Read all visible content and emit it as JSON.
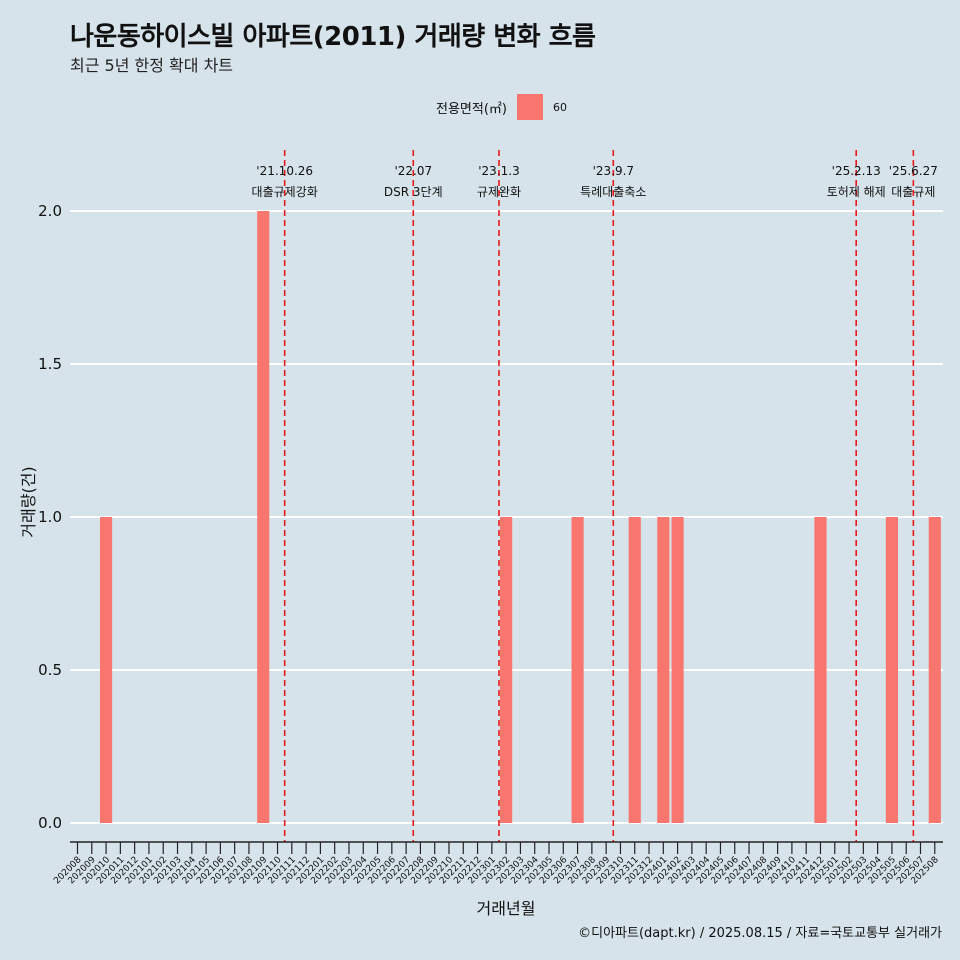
{
  "header": {
    "title": "나운동하이스빌 아파트(2011) 거래량 변화 흐름",
    "subtitle": "최근 5년 한정 확대 차트"
  },
  "legend": {
    "title": "전용면적(㎡)",
    "label": "60"
  },
  "caption": "©디아파트(dapt.kr) / 2025.08.15 / 자료=국토교통부 실거래가",
  "colors": {
    "background": "#d6e3ea",
    "bar": "#f8766d",
    "gridline": "#ffffff",
    "event_line": "#e8191b"
  },
  "chart_data": {
    "type": "bar",
    "xlabel": "거래년월",
    "ylabel": "거래량(건)",
    "ylim": [
      0,
      2
    ],
    "yticks": [
      "0.0",
      "0.5",
      "1.0",
      "1.5",
      "2.0"
    ],
    "grid": "horizontal",
    "legend_position": "top",
    "categories": [
      "202008",
      "202009",
      "202010",
      "202011",
      "202012",
      "202101",
      "202102",
      "202103",
      "202104",
      "202105",
      "202106",
      "202107",
      "202108",
      "202109",
      "202110",
      "202111",
      "202112",
      "202201",
      "202202",
      "202203",
      "202204",
      "202205",
      "202206",
      "202207",
      "202208",
      "202209",
      "202210",
      "202211",
      "202212",
      "202301",
      "202302",
      "202303",
      "202304",
      "202305",
      "202306",
      "202307",
      "202308",
      "202309",
      "202310",
      "202311",
      "202312",
      "202401",
      "202402",
      "202403",
      "202404",
      "202405",
      "202406",
      "202407",
      "202408",
      "202409",
      "202410",
      "202411",
      "202412",
      "202501",
      "202502",
      "202503",
      "202504",
      "202505",
      "202506",
      "202507",
      "202508"
    ],
    "series": [
      {
        "name": "60",
        "values": [
          0,
          0,
          1,
          0,
          0,
          0,
          0,
          0,
          0,
          0,
          0,
          0,
          0,
          2,
          0,
          0,
          0,
          0,
          0,
          0,
          0,
          0,
          0,
          0,
          0,
          0,
          0,
          0,
          0,
          0,
          1,
          0,
          0,
          0,
          0,
          1,
          0,
          0,
          0,
          1,
          0,
          1,
          1,
          0,
          0,
          0,
          0,
          0,
          0,
          0,
          0,
          0,
          1,
          0,
          0,
          0,
          0,
          1,
          0,
          0,
          1
        ]
      }
    ],
    "events": [
      {
        "date": "'21.10.26",
        "label": "대출규제강화",
        "x": 14.5
      },
      {
        "date": "'22.07",
        "label": "DSR 3단계",
        "x": 23.5
      },
      {
        "date": "'23.1.3",
        "label": "규제완화",
        "x": 29.5
      },
      {
        "date": "'23.9.7",
        "label": "특례대출축소",
        "x": 37.5
      },
      {
        "date": "'25.2.13",
        "label": "토허제 해제",
        "x": 54.5
      },
      {
        "date": "'25.6.27",
        "label": "대출규제",
        "x": 58.5
      }
    ]
  }
}
